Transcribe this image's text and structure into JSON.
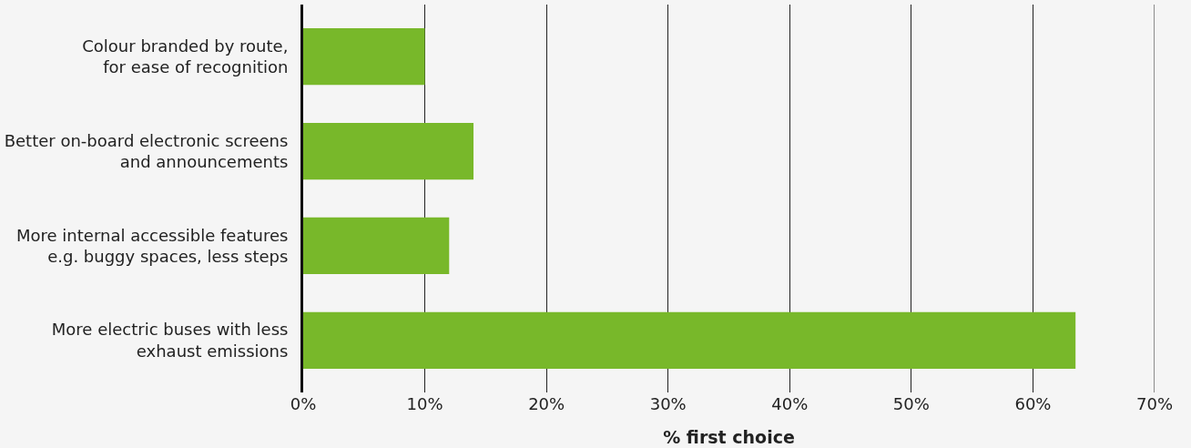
{
  "chart_data": {
    "type": "bar",
    "orientation": "horizontal",
    "xlabel": "% first choice",
    "categories": [
      "Colour branded by route,\nfor ease of recognition",
      "Better on-board electronic screens\nand announcements",
      "More internal accessible features\ne.g. buggy spaces, less steps",
      "More electric buses with less\nexhaust emissions"
    ],
    "values": [
      10,
      14,
      12,
      63.5
    ],
    "color": "#78b82a",
    "xlim": [
      0,
      70
    ],
    "xticks": [
      {
        "value": 0,
        "label": "0%"
      },
      {
        "value": 10,
        "label": "10%"
      },
      {
        "value": 20,
        "label": "20%"
      },
      {
        "value": 30,
        "label": "30%"
      },
      {
        "value": 40,
        "label": "40%"
      },
      {
        "value": 50,
        "label": "50%"
      },
      {
        "value": 60,
        "label": "60%"
      },
      {
        "value": 70,
        "label": "70%"
      }
    ],
    "grid": "x",
    "legend": false
  }
}
